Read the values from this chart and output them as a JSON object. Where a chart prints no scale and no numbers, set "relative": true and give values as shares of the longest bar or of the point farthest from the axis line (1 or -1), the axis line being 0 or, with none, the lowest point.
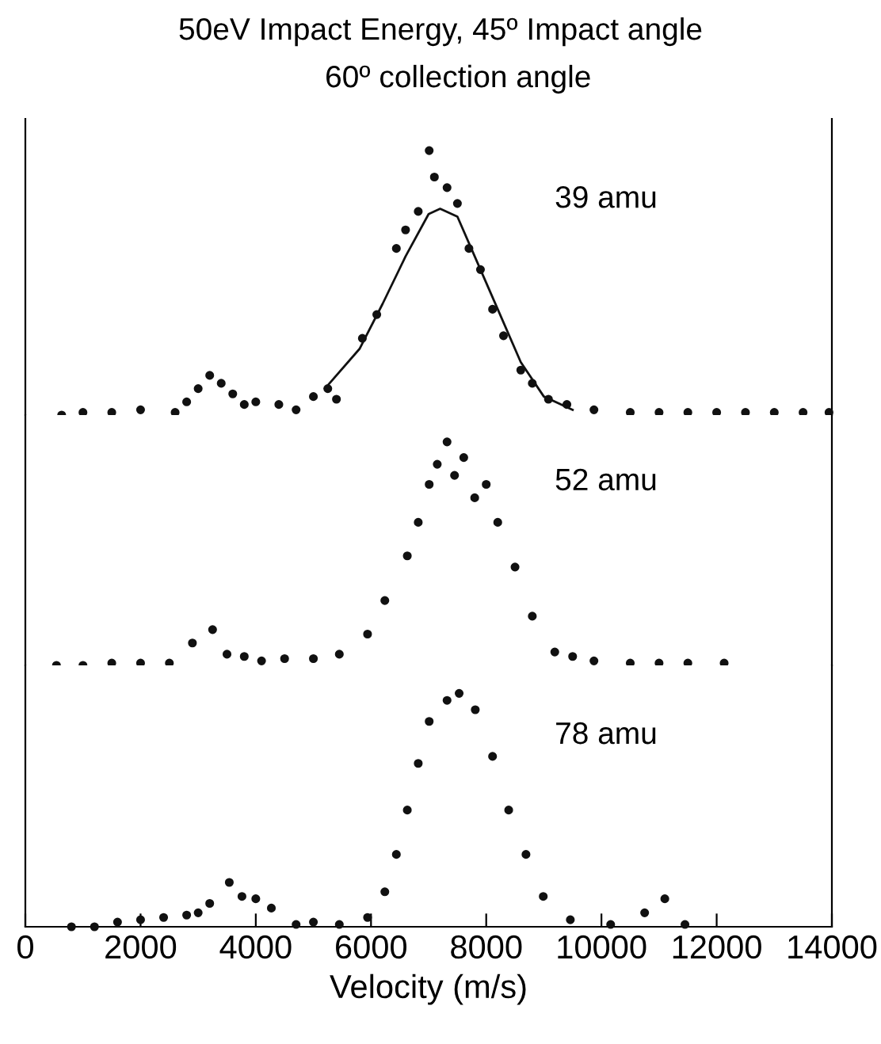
{
  "chart_data": [
    {
      "type": "line",
      "title": "50eV Impact Energy, 45º Impact angle",
      "subtitle": "60º collection angle",
      "relative": true,
      "xlim": [
        0,
        14000
      ],
      "xticks": [
        0,
        2000,
        4000,
        6000,
        8000,
        10000,
        12000,
        14000
      ],
      "tick_labels": false,
      "annotations": [
        "39 amu"
      ],
      "series": [
        {
          "type": "scatter",
          "marker": "circle",
          "color": "#111111",
          "x": [
            630,
            1000,
            1500,
            2000,
            2600,
            2800,
            3000,
            3200,
            3400,
            3600,
            3800,
            4000,
            4400,
            4700,
            5000,
            5250,
            5400,
            5850,
            6100,
            6440,
            6600,
            6820,
            7010,
            7100,
            7320,
            7500,
            7700,
            7900,
            8110,
            8300,
            8600,
            8800,
            9080,
            9400,
            9870,
            10500,
            11000,
            11500,
            12000,
            12500,
            13000,
            13500,
            13950
          ],
          "values": [
            0,
            0.01,
            0.01,
            0.02,
            0.01,
            0.05,
            0.1,
            0.15,
            0.12,
            0.08,
            0.04,
            0.05,
            0.04,
            0.02,
            0.07,
            0.1,
            0.06,
            0.29,
            0.38,
            0.63,
            0.7,
            0.77,
            1.0,
            0.9,
            0.86,
            0.8,
            0.63,
            0.55,
            0.4,
            0.3,
            0.17,
            0.12,
            0.06,
            0.04,
            0.02,
            0.01,
            0.01,
            0.01,
            0.01,
            0.01,
            0.01,
            0.01,
            0.01
          ]
        },
        {
          "color": "#111111",
          "x": [
            5200,
            5800,
            6200,
            6600,
            7000,
            7200,
            7500,
            7800,
            8200,
            8600,
            9000,
            9500
          ],
          "values": [
            0.1,
            0.25,
            0.42,
            0.6,
            0.76,
            0.78,
            0.75,
            0.6,
            0.4,
            0.2,
            0.07,
            0.02
          ]
        }
      ]
    },
    {
      "type": "line",
      "relative": true,
      "xlim": [
        0,
        14000
      ],
      "xticks": [
        0,
        2000,
        4000,
        6000,
        8000,
        10000,
        12000,
        14000
      ],
      "tick_labels": false,
      "marker": "circle",
      "annotations": [
        "52 amu"
      ],
      "series": [
        {
          "type": "scatter",
          "color": "#111111",
          "x": [
            540,
            1000,
            1500,
            2000,
            2500,
            2900,
            3250,
            3500,
            3800,
            4100,
            4500,
            5000,
            5450,
            5940,
            6240,
            6630,
            6820,
            7010,
            7150,
            7320,
            7450,
            7610,
            7800,
            8000,
            8200,
            8500,
            8800,
            9190,
            9500,
            9870,
            10500,
            11000,
            11500,
            12130
          ],
          "values": [
            0,
            0.0,
            0.01,
            0.01,
            0.01,
            0.1,
            0.16,
            0.05,
            0.04,
            0.02,
            0.03,
            0.03,
            0.05,
            0.14,
            0.29,
            0.49,
            0.64,
            0.81,
            0.9,
            1.0,
            0.85,
            0.93,
            0.75,
            0.81,
            0.64,
            0.44,
            0.22,
            0.06,
            0.04,
            0.02,
            0.01,
            0.01,
            0.01,
            0.01
          ]
        }
      ]
    },
    {
      "type": "line",
      "relative": true,
      "xlim": [
        0,
        14000
      ],
      "xticks": [
        0,
        2000,
        4000,
        6000,
        8000,
        10000,
        12000,
        14000
      ],
      "tick_labels": "x",
      "xlabel": "Velocity (m/s)",
      "marker": "circle",
      "annotations": [
        "78 amu"
      ],
      "series": [
        {
          "type": "scatter",
          "color": "#111111",
          "x": [
            800,
            1200,
            1600,
            2000,
            2400,
            2800,
            3000,
            3200,
            3540,
            3760,
            4000,
            4270,
            4700,
            5000,
            5450,
            5940,
            6240,
            6440,
            6630,
            6820,
            7010,
            7320,
            7530,
            7810,
            8110,
            8390,
            8690,
            8990,
            9460,
            10160,
            10750,
            11100,
            11450
          ],
          "values": [
            0.0,
            0.0,
            0.02,
            0.03,
            0.04,
            0.05,
            0.06,
            0.1,
            0.19,
            0.13,
            0.12,
            0.08,
            0.01,
            0.02,
            0.01,
            0.04,
            0.15,
            0.31,
            0.5,
            0.7,
            0.88,
            0.97,
            1.0,
            0.93,
            0.73,
            0.5,
            0.31,
            0.13,
            0.03,
            0.01,
            0.06,
            0.12,
            0.01
          ]
        }
      ]
    }
  ]
}
